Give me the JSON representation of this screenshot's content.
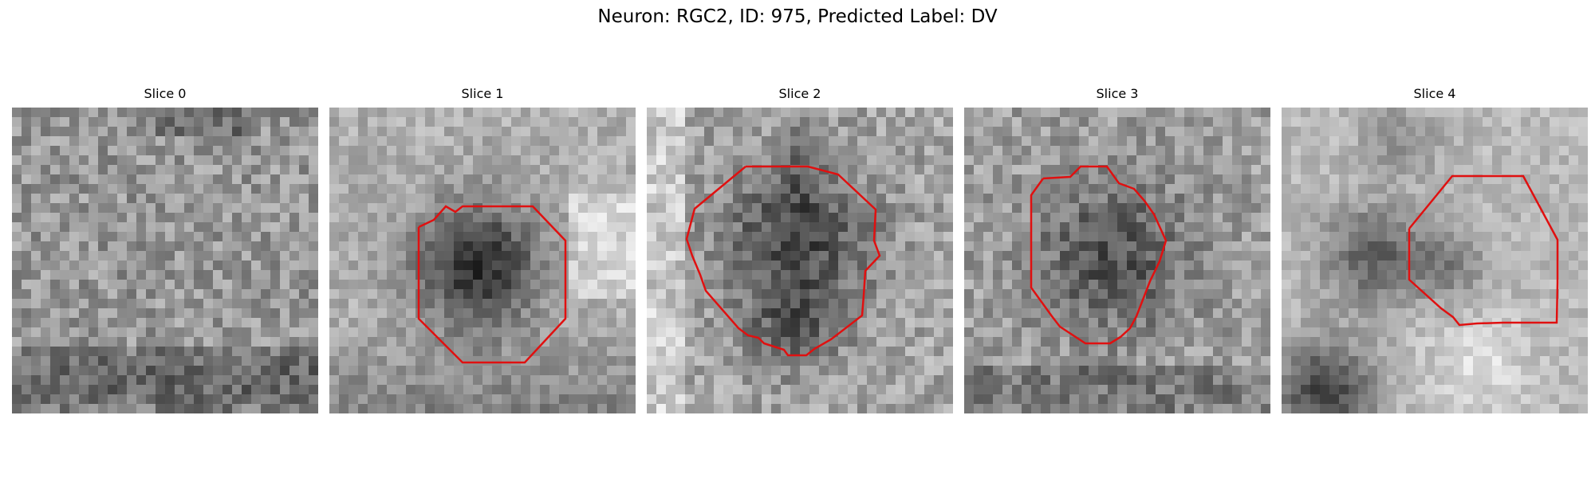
{
  "figure": {
    "title": "Neuron: RGC2, ID: 975, Predicted Label: DV",
    "contour_color": "#e01010",
    "colormap": "gray"
  },
  "panels": [
    {
      "title": "Slice 0",
      "has_contour": false
    },
    {
      "title": "Slice 1",
      "has_contour": true
    },
    {
      "title": "Slice 2",
      "has_contour": true
    },
    {
      "title": "Slice 3",
      "has_contour": true
    },
    {
      "title": "Slice 4",
      "has_contour": true
    }
  ]
}
